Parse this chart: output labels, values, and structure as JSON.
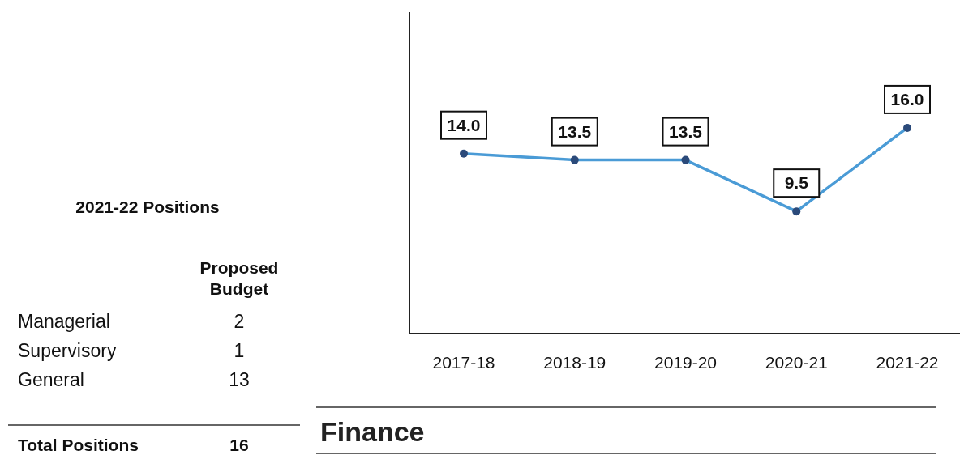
{
  "chart_data": [
    {
      "type": "line",
      "title": "Finance",
      "categories": [
        "2017-18",
        "2018-19",
        "2019-20",
        "2020-21",
        "2021-22"
      ],
      "series": [
        {
          "color": "#4a9bd6",
          "values": [
            14,
            13.5,
            13.5,
            9.5,
            16
          ],
          "value_labels": [
            "14.0",
            "13.5",
            "13.5",
            "9.5",
            "16.0"
          ]
        }
      ],
      "ylim": [
        0,
        25
      ],
      "tick_labels": "x",
      "marker": "circle"
    },
    {
      "type": "other",
      "title": "2021-22 Positions",
      "ylabel": "Proposed Budget",
      "categories": [
        "Managerial",
        "Supervisory",
        "General"
      ],
      "values": [
        2,
        1,
        13
      ],
      "data_labels": true,
      "annotations": [
        "Total Positions",
        "16"
      ]
    }
  ]
}
